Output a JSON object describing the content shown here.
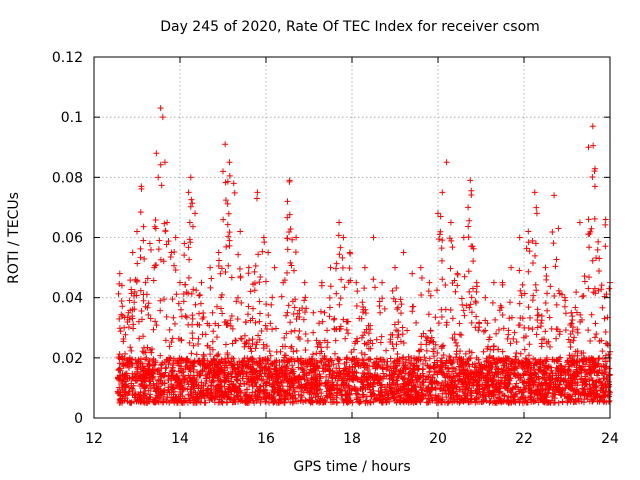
{
  "chart_data": {
    "type": "scatter",
    "title": "Day 245 of 2020, Rate Of TEC Index for receiver csom",
    "xlabel": "GPS time / hours",
    "ylabel": "ROTI / TECUs",
    "xlim": [
      12,
      24
    ],
    "ylim": [
      0,
      0.12
    ],
    "xticks": [
      12,
      14,
      16,
      18,
      20,
      22,
      24
    ],
    "yticks": [
      0,
      0.02,
      0.04,
      0.06,
      0.08,
      0.1,
      0.12
    ],
    "xtick_labels": [
      "12",
      "14",
      "16",
      "18",
      "20",
      "22",
      "24"
    ],
    "ytick_labels": [
      "0",
      "0.02",
      "0.04",
      "0.06",
      "0.08",
      "0.1",
      "0.12"
    ],
    "grid": true,
    "marker": "+",
    "color": "#ff0000",
    "series": [
      {
        "name": "ROTI",
        "x_range": [
          12.55,
          24.0
        ],
        "baseline_band": [
          0.005,
          0.02
        ],
        "note": "dense cloud of several thousand points; representative sample listed below",
        "points": [
          [
            12.6,
            0.048
          ],
          [
            12.65,
            0.044
          ],
          [
            12.7,
            0.03
          ],
          [
            12.8,
            0.035
          ],
          [
            12.9,
            0.055
          ],
          [
            13.0,
            0.062
          ],
          [
            13.1,
            0.077
          ],
          [
            13.2,
            0.045
          ],
          [
            13.3,
            0.058
          ],
          [
            13.4,
            0.05
          ],
          [
            13.45,
            0.088
          ],
          [
            13.55,
            0.103
          ],
          [
            13.6,
            0.1
          ],
          [
            13.65,
            0.085
          ],
          [
            13.7,
            0.065
          ],
          [
            13.8,
            0.055
          ],
          [
            13.9,
            0.06
          ],
          [
            14.0,
            0.045
          ],
          [
            14.1,
            0.058
          ],
          [
            14.2,
            0.075
          ],
          [
            14.25,
            0.08
          ],
          [
            14.35,
            0.068
          ],
          [
            14.5,
            0.045
          ],
          [
            14.7,
            0.05
          ],
          [
            14.9,
            0.055
          ],
          [
            15.0,
            0.082
          ],
          [
            15.05,
            0.091
          ],
          [
            15.15,
            0.085
          ],
          [
            15.25,
            0.078
          ],
          [
            15.4,
            0.062
          ],
          [
            15.6,
            0.05
          ],
          [
            15.8,
            0.075
          ],
          [
            15.95,
            0.06
          ],
          [
            16.05,
            0.055
          ],
          [
            16.2,
            0.05
          ],
          [
            16.4,
            0.045
          ],
          [
            16.5,
            0.072
          ],
          [
            16.55,
            0.079
          ],
          [
            16.7,
            0.06
          ],
          [
            16.9,
            0.045
          ],
          [
            17.1,
            0.035
          ],
          [
            17.3,
            0.045
          ],
          [
            17.5,
            0.05
          ],
          [
            17.7,
            0.065
          ],
          [
            17.8,
            0.06
          ],
          [
            17.95,
            0.055
          ],
          [
            18.1,
            0.045
          ],
          [
            18.3,
            0.05
          ],
          [
            18.5,
            0.06
          ],
          [
            18.7,
            0.045
          ],
          [
            19.0,
            0.05
          ],
          [
            19.2,
            0.055
          ],
          [
            19.4,
            0.048
          ],
          [
            19.6,
            0.05
          ],
          [
            19.8,
            0.045
          ],
          [
            20.0,
            0.068
          ],
          [
            20.1,
            0.075
          ],
          [
            20.2,
            0.085
          ],
          [
            20.3,
            0.065
          ],
          [
            20.45,
            0.048
          ],
          [
            20.6,
            0.06
          ],
          [
            20.7,
            0.07
          ],
          [
            20.75,
            0.079
          ],
          [
            20.9,
            0.045
          ],
          [
            21.1,
            0.04
          ],
          [
            21.3,
            0.045
          ],
          [
            21.5,
            0.045
          ],
          [
            21.7,
            0.05
          ],
          [
            21.9,
            0.06
          ],
          [
            22.1,
            0.062
          ],
          [
            22.25,
            0.075
          ],
          [
            22.3,
            0.068
          ],
          [
            22.5,
            0.05
          ],
          [
            22.7,
            0.074
          ],
          [
            22.8,
            0.063
          ],
          [
            22.95,
            0.04
          ],
          [
            23.1,
            0.035
          ],
          [
            23.3,
            0.065
          ],
          [
            23.5,
            0.09
          ],
          [
            23.6,
            0.097
          ],
          [
            23.65,
            0.077
          ],
          [
            23.75,
            0.053
          ],
          [
            23.9,
            0.066
          ],
          [
            24.0,
            0.045
          ]
        ]
      }
    ]
  }
}
